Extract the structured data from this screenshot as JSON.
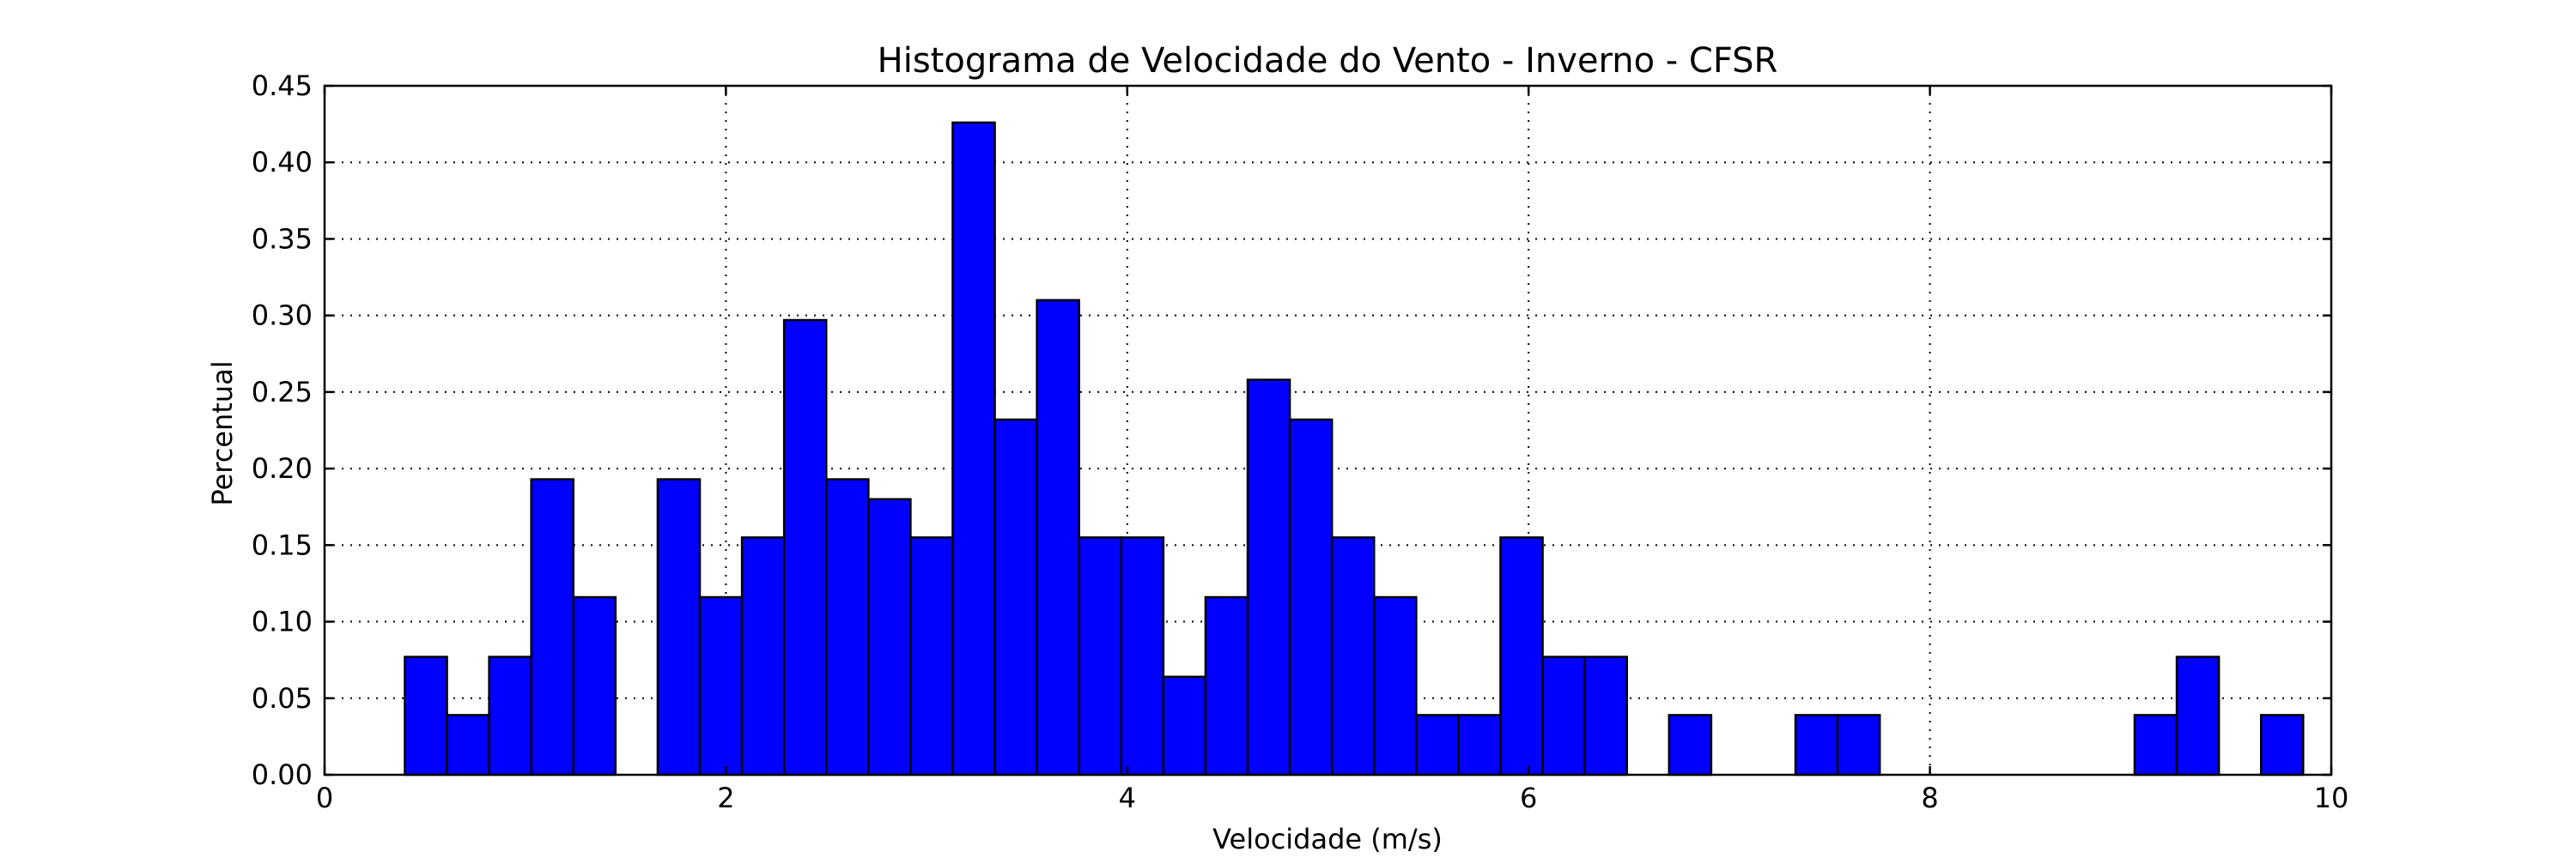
{
  "chart_data": {
    "type": "bar",
    "title": "Histograma de Velocidade do Vento - Inverno - CFSR",
    "xlabel": "Velocidade (m/s)",
    "ylabel": "Percentual",
    "xlim": [
      0,
      10
    ],
    "ylim": [
      0,
      0.45
    ],
    "xticks": [
      0,
      2,
      4,
      6,
      8,
      10
    ],
    "xtick_labels": [
      "0",
      "2",
      "4",
      "6",
      "8",
      "10"
    ],
    "yticks": [
      0,
      0.05,
      0.1,
      0.15,
      0.2,
      0.25,
      0.3,
      0.35,
      0.4,
      0.45
    ],
    "ytick_labels": [
      "0.00",
      "0.05",
      "0.10",
      "0.15",
      "0.20",
      "0.25",
      "0.30",
      "0.35",
      "0.40",
      "0.45"
    ],
    "grid": true,
    "bar_color": "#0000ff",
    "bins": [
      {
        "x0": 0.4,
        "x1": 0.61,
        "value": 0.077
      },
      {
        "x0": 0.61,
        "x1": 0.82,
        "value": 0.039
      },
      {
        "x0": 0.82,
        "x1": 1.03,
        "value": 0.077
      },
      {
        "x0": 1.03,
        "x1": 1.24,
        "value": 0.193
      },
      {
        "x0": 1.24,
        "x1": 1.45,
        "value": 0.116
      },
      {
        "x0": 1.66,
        "x1": 1.87,
        "value": 0.193
      },
      {
        "x0": 1.87,
        "x1": 2.08,
        "value": 0.116
      },
      {
        "x0": 2.08,
        "x1": 2.29,
        "value": 0.155
      },
      {
        "x0": 2.29,
        "x1": 2.5,
        "value": 0.297
      },
      {
        "x0": 2.5,
        "x1": 2.71,
        "value": 0.193
      },
      {
        "x0": 2.71,
        "x1": 2.92,
        "value": 0.18
      },
      {
        "x0": 2.92,
        "x1": 3.13,
        "value": 0.155
      },
      {
        "x0": 3.13,
        "x1": 3.34,
        "value": 0.426
      },
      {
        "x0": 3.34,
        "x1": 3.55,
        "value": 0.232
      },
      {
        "x0": 3.55,
        "x1": 3.76,
        "value": 0.31
      },
      {
        "x0": 3.76,
        "x1": 3.97,
        "value": 0.155
      },
      {
        "x0": 3.97,
        "x1": 4.18,
        "value": 0.155
      },
      {
        "x0": 4.18,
        "x1": 4.39,
        "value": 0.064
      },
      {
        "x0": 4.39,
        "x1": 4.6,
        "value": 0.116
      },
      {
        "x0": 4.6,
        "x1": 4.81,
        "value": 0.258
      },
      {
        "x0": 4.81,
        "x1": 5.02,
        "value": 0.232
      },
      {
        "x0": 5.02,
        "x1": 5.23,
        "value": 0.155
      },
      {
        "x0": 5.23,
        "x1": 5.44,
        "value": 0.116
      },
      {
        "x0": 5.44,
        "x1": 5.65,
        "value": 0.039
      },
      {
        "x0": 5.65,
        "x1": 5.86,
        "value": 0.039
      },
      {
        "x0": 5.86,
        "x1": 6.07,
        "value": 0.155
      },
      {
        "x0": 6.07,
        "x1": 6.28,
        "value": 0.077
      },
      {
        "x0": 6.28,
        "x1": 6.49,
        "value": 0.077
      },
      {
        "x0": 6.7,
        "x1": 6.91,
        "value": 0.039
      },
      {
        "x0": 7.33,
        "x1": 7.54,
        "value": 0.039
      },
      {
        "x0": 7.54,
        "x1": 7.75,
        "value": 0.039
      },
      {
        "x0": 9.02,
        "x1": 9.23,
        "value": 0.039
      },
      {
        "x0": 9.23,
        "x1": 9.44,
        "value": 0.077
      },
      {
        "x0": 9.65,
        "x1": 9.86,
        "value": 0.039
      }
    ]
  }
}
